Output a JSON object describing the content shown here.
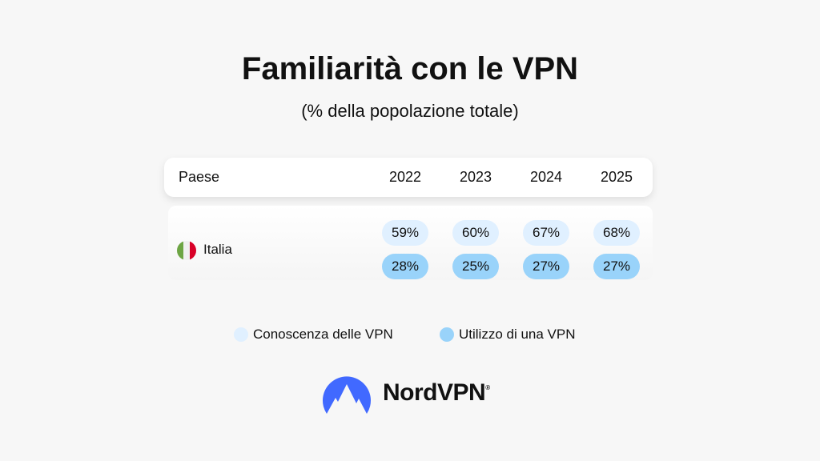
{
  "title": "Familiarità con le VPN",
  "subtitle": "(% della popolazione totale)",
  "colors": {
    "awareness": "#e0f0ff",
    "usage": "#99d3fa",
    "logo": "#4169ff"
  },
  "chart_data": {
    "type": "table",
    "title": "Familiarità con le VPN",
    "subtitle": "(% della popolazione totale)",
    "columns": [
      "Paese",
      "2022",
      "2023",
      "2024",
      "2025"
    ],
    "rows": [
      {
        "country": "Italia",
        "awareness": [
          "59%",
          "60%",
          "67%",
          "68%"
        ],
        "usage": [
          "28%",
          "25%",
          "27%",
          "27%"
        ]
      }
    ],
    "series": [
      {
        "name": "Conoscenza delle VPN",
        "values": [
          59,
          60,
          67,
          68
        ]
      },
      {
        "name": "Utilizzo di una VPN",
        "values": [
          28,
          25,
          27,
          27
        ]
      }
    ],
    "legend": [
      "Conoscenza delle VPN",
      "Utilizzo di una VPN"
    ]
  },
  "brand": {
    "name": "NordVPN",
    "mark": "®"
  }
}
